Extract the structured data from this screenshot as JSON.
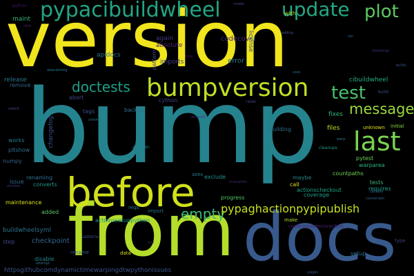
{
  "words": [
    {
      "text": "version",
      "color": "#f1e51d"
    },
    {
      "text": "bump",
      "color": "#25838e"
    },
    {
      "text": "from",
      "color": "#b5de2b"
    },
    {
      "text": "docs",
      "color": "#38598c"
    },
    {
      "text": "before",
      "color": "#d0e11c"
    },
    {
      "text": "bumpversion",
      "color": "#c2df23"
    },
    {
      "text": "pypacibuildwheel",
      "color": "#21a585"
    },
    {
      "text": "update",
      "color": "#22a884"
    },
    {
      "text": "plot",
      "color": "#5ec962"
    },
    {
      "text": "last",
      "color": "#7ad151"
    },
    {
      "text": "test",
      "color": "#4ac16d"
    },
    {
      "text": "message",
      "color": "#9bd93c"
    },
    {
      "text": "doctests",
      "color": "#1fa188"
    },
    {
      "text": "empty",
      "color": "#3bbb75"
    },
    {
      "text": "pypaghactionpypipublish",
      "color": "#c8e020"
    },
    {
      "text": "error",
      "color": "#2a788e"
    },
    {
      "text": "codecov",
      "color": "#482878"
    },
    {
      "text": "ci",
      "color": "#31688e"
    },
    {
      "text": "license",
      "color": "#3e4989"
    },
    {
      "text": "apidocs",
      "color": "#2c728e"
    },
    {
      "text": "again",
      "color": "#453781"
    },
    {
      "text": "absolute",
      "color": "#481f70"
    },
    {
      "text": "imports",
      "color": "#433e85"
    },
    {
      "text": "pattern",
      "color": "#3f4788"
    },
    {
      "text": "cython",
      "color": "#404688"
    },
    {
      "text": "maint",
      "color": "#35b779"
    },
    {
      "text": "with",
      "color": "#b8de29"
    },
    {
      "text": "cibuildwheel",
      "color": "#27ad81"
    },
    {
      "text": "backup",
      "color": "#2c728e"
    },
    {
      "text": "tags",
      "color": "#3b528b"
    },
    {
      "text": "release",
      "color": "#2a778e"
    },
    {
      "text": "remove",
      "color": "#34618d"
    },
    {
      "text": "abort",
      "color": "#3e4a89"
    },
    {
      "text": "fixes",
      "color": "#31b57b"
    },
    {
      "text": "files",
      "color": "#bddf26"
    },
    {
      "text": "unknown",
      "color": "#e5e419"
    },
    {
      "text": "initial",
      "color": "#8fd744"
    },
    {
      "text": "building",
      "color": "#2d708e"
    },
    {
      "text": "changelog",
      "color": "#3b528b"
    },
    {
      "text": "works",
      "color": "#287d8e"
    },
    {
      "text": "pltshow",
      "color": "#2d708e"
    },
    {
      "text": "numpy",
      "color": "#33638d"
    },
    {
      "text": "autogen",
      "color": "#26828e"
    },
    {
      "text": "cleanups",
      "color": "#1f998a"
    },
    {
      "text": "pytest",
      "color": "#70cf57"
    },
    {
      "text": "warparea",
      "color": "#2db27d"
    },
    {
      "text": "countpaths",
      "color": "#75d054"
    },
    {
      "text": "maybe",
      "color": "#25858e"
    },
    {
      "text": "exclude",
      "color": "#20928c"
    },
    {
      "text": "renaming",
      "color": "#2d718e"
    },
    {
      "text": "issue",
      "color": "#31688e"
    },
    {
      "text": "converts",
      "color": "#1e9b8a"
    },
    {
      "text": "call",
      "color": "#dde318"
    },
    {
      "text": "tests",
      "color": "#3aba76"
    },
    {
      "text": "requires",
      "color": "#1fa088"
    },
    {
      "text": "axes",
      "color": "#287c8e"
    },
    {
      "text": "actionscheckout",
      "color": "#20a386"
    },
    {
      "text": "coverage",
      "color": "#1f9e89"
    },
    {
      "text": "progress",
      "color": "#52c569"
    },
    {
      "text": "maintenance",
      "color": "#d8e219"
    },
    {
      "text": "added",
      "color": "#5cc863"
    },
    {
      "text": "reqs",
      "color": "#2a768e"
    },
    {
      "text": "import",
      "color": "#2c718e"
    },
    {
      "text": "actionssetuppython",
      "color": "#1f958b"
    },
    {
      "text": "make",
      "color": "#b2dd2d"
    },
    {
      "text": "codecovcodecovaction",
      "color": "#482374"
    },
    {
      "text": "buildwheelsyml",
      "color": "#2c728e"
    },
    {
      "text": "checkpoint",
      "color": "#31688e"
    },
    {
      "text": "step",
      "color": "#3e4989"
    },
    {
      "text": "disable",
      "color": "#24878e"
    },
    {
      "text": "rename",
      "color": "#38588c"
    },
    {
      "text": "data",
      "color": "#e2e418"
    },
    {
      "text": "setup",
      "color": "#2e6e8e"
    },
    {
      "text": "type",
      "color": "#433e85"
    },
    {
      "text": "httpsgithubcomdynamictimewarpingdtwpythonissues",
      "color": "#3b528b"
    },
    {
      "text": "patterns",
      "color": "#3c4f8a"
    },
    {
      "text": "abandoning",
      "color": "#2a788e"
    },
    {
      "text": "python",
      "color": "#471365"
    },
    {
      "text": "create",
      "color": "#3f4788"
    },
    {
      "text": "adding",
      "color": "#3b528b"
    },
    {
      "text": "bootstrap",
      "color": "#472d7b"
    },
    {
      "text": "aimless",
      "color": "#46307e"
    },
    {
      "text": "attempt",
      "color": "#2e6f8e"
    },
    {
      "text": "raise",
      "color": "#404588"
    },
    {
      "text": "commit",
      "color": "#29798e"
    },
    {
      "text": "conversion",
      "color": "#32648e"
    },
    {
      "text": "builds",
      "color": "#3b528b"
    },
    {
      "text": "ran",
      "color": "#31688e"
    },
    {
      "text": "uses",
      "color": "#2c728e"
    },
    {
      "text": "uninstall",
      "color": "#46337f"
    },
    {
      "text": "invocation",
      "color": "#482576"
    },
    {
      "text": "callable",
      "color": "#2b748e"
    },
    {
      "text": "build",
      "color": "#3b528b"
    },
    {
      "text": "click",
      "color": "#482475"
    },
    {
      "text": "warp",
      "color": "#2a788e"
    },
    {
      "text": "switch",
      "color": "#3f4889"
    },
    {
      "text": "blog",
      "color": "#471063"
    },
    {
      "text": "pages",
      "color": "#3a538b"
    },
    {
      "text": "env",
      "color": "#482071"
    }
  ]
}
